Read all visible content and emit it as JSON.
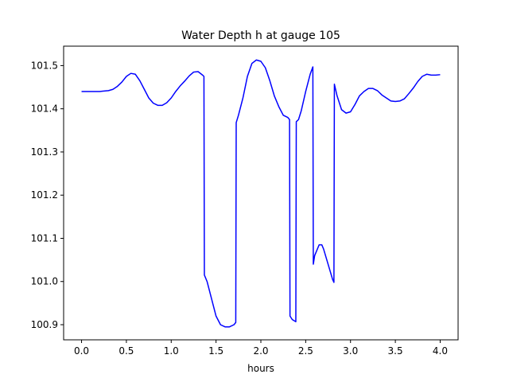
{
  "chart_data": {
    "type": "line",
    "title": "Water Depth h at gauge 105",
    "xlabel": "hours",
    "ylabel": "",
    "xlim": [
      -0.2,
      4.2
    ],
    "ylim": [
      100.865,
      101.545
    ],
    "xticks": [
      0.0,
      0.5,
      1.0,
      1.5,
      2.0,
      2.5,
      3.0,
      3.5,
      4.0
    ],
    "xtick_labels": [
      "0.0",
      "0.5",
      "1.0",
      "1.5",
      "2.0",
      "2.5",
      "3.0",
      "3.5",
      "4.0"
    ],
    "yticks": [
      100.9,
      101.0,
      101.1,
      101.2,
      101.3,
      101.4,
      101.5
    ],
    "ytick_labels": [
      "100.9",
      "101.0",
      "101.1",
      "101.2",
      "101.3",
      "101.4",
      "101.5"
    ],
    "grid": false,
    "series": [
      {
        "color": "#0000ff",
        "x": [
          0.0,
          0.1,
          0.2,
          0.3,
          0.35,
          0.4,
          0.45,
          0.5,
          0.55,
          0.6,
          0.65,
          0.7,
          0.75,
          0.8,
          0.85,
          0.9,
          0.95,
          1.0,
          1.05,
          1.1,
          1.15,
          1.2,
          1.25,
          1.3,
          1.35,
          1.365,
          1.37,
          1.4,
          1.45,
          1.5,
          1.55,
          1.6,
          1.65,
          1.7,
          1.72,
          1.725,
          1.75,
          1.8,
          1.85,
          1.9,
          1.95,
          2.0,
          2.05,
          2.1,
          2.15,
          2.2,
          2.25,
          2.3,
          2.32,
          2.325,
          2.35,
          2.39,
          2.395,
          2.42,
          2.45,
          2.5,
          2.55,
          2.58,
          2.585,
          2.6,
          2.65,
          2.68,
          2.7,
          2.75,
          2.8,
          2.815,
          2.82,
          2.85,
          2.9,
          2.95,
          3.0,
          3.05,
          3.1,
          3.15,
          3.2,
          3.25,
          3.3,
          3.35,
          3.4,
          3.45,
          3.5,
          3.55,
          3.6,
          3.65,
          3.7,
          3.75,
          3.8,
          3.85,
          3.9,
          3.95,
          4.0
        ],
        "y": [
          101.44,
          101.44,
          101.44,
          101.442,
          101.445,
          101.452,
          101.462,
          101.475,
          101.482,
          101.48,
          101.465,
          101.445,
          101.425,
          101.413,
          101.408,
          101.408,
          101.414,
          101.425,
          101.44,
          101.453,
          101.464,
          101.476,
          101.485,
          101.486,
          101.478,
          101.475,
          101.015,
          101.0,
          100.96,
          100.92,
          100.9,
          100.895,
          100.895,
          100.9,
          100.905,
          101.368,
          101.385,
          101.425,
          101.475,
          101.505,
          101.513,
          101.51,
          101.495,
          101.465,
          101.43,
          101.405,
          101.385,
          101.38,
          101.375,
          100.92,
          100.912,
          100.907,
          101.37,
          101.375,
          101.395,
          101.44,
          101.48,
          101.497,
          101.04,
          101.06,
          101.085,
          101.085,
          101.075,
          101.04,
          101.005,
          100.998,
          101.457,
          101.43,
          101.398,
          101.39,
          101.393,
          101.41,
          101.43,
          101.44,
          101.447,
          101.447,
          101.442,
          101.432,
          101.425,
          101.418,
          101.417,
          101.418,
          101.423,
          101.435,
          101.448,
          101.463,
          101.475,
          101.48,
          101.478,
          101.478,
          101.479
        ]
      }
    ]
  }
}
